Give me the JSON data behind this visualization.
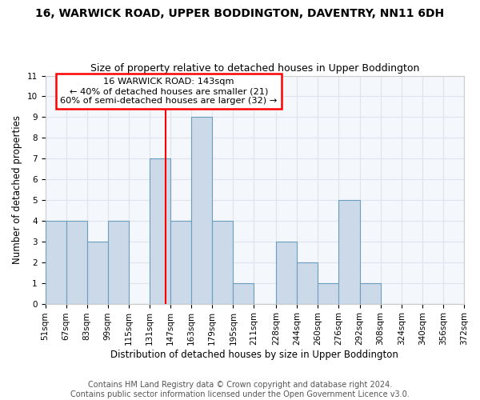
{
  "title": "16, WARWICK ROAD, UPPER BODDINGTON, DAVENTRY, NN11 6DH",
  "subtitle": "Size of property relative to detached houses in Upper Boddington",
  "xlabel": "Distribution of detached houses by size in Upper Boddington",
  "ylabel": "Number of detached properties",
  "bin_edges": [
    51,
    67,
    83,
    99,
    115,
    131,
    147,
    163,
    179,
    195,
    211,
    228,
    244,
    260,
    276,
    292,
    308,
    324,
    340,
    356,
    372
  ],
  "counts": [
    4,
    4,
    3,
    4,
    0,
    7,
    4,
    9,
    4,
    1,
    0,
    3,
    2,
    1,
    5,
    1,
    0,
    0,
    0,
    0
  ],
  "bar_color": "#ccd9e8",
  "bar_edge_color": "#6a9fc0",
  "property_line_x": 143,
  "property_line_color": "red",
  "ylim": [
    0,
    11
  ],
  "yticks": [
    0,
    1,
    2,
    3,
    4,
    5,
    6,
    7,
    8,
    9,
    10,
    11
  ],
  "annotation_title": "16 WARWICK ROAD: 143sqm",
  "annotation_line1": "← 40% of detached houses are smaller (21)",
  "annotation_line2": "60% of semi-detached houses are larger (32) →",
  "annotation_box_color": "white",
  "annotation_box_edge_color": "red",
  "footer_line1": "Contains HM Land Registry data © Crown copyright and database right 2024.",
  "footer_line2": "Contains public sector information licensed under the Open Government Licence v3.0.",
  "background_color": "#ffffff",
  "plot_bg_color": "#f4f7fb",
  "grid_color": "#dde4ed",
  "tick_labels": [
    "51sqm",
    "67sqm",
    "83sqm",
    "99sqm",
    "115sqm",
    "131sqm",
    "147sqm",
    "163sqm",
    "179sqm",
    "195sqm",
    "211sqm",
    "228sqm",
    "244sqm",
    "260sqm",
    "276sqm",
    "292sqm",
    "308sqm",
    "324sqm",
    "340sqm",
    "356sqm",
    "372sqm"
  ],
  "title_fontsize": 10,
  "subtitle_fontsize": 9,
  "axis_fontsize": 8.5,
  "tick_fontsize": 7.5,
  "footer_fontsize": 7
}
